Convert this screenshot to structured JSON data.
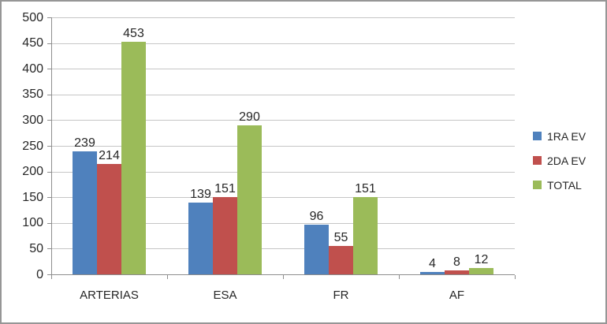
{
  "chart_data": {
    "type": "bar",
    "categories": [
      "ARTERIAS",
      "ESA",
      "FR",
      "AF"
    ],
    "series": [
      {
        "name": "1RA EV",
        "color": "#4F81BD",
        "values": [
          239,
          139,
          96,
          4
        ]
      },
      {
        "name": "2DA EV",
        "color": "#C0504D",
        "values": [
          214,
          151,
          55,
          8
        ]
      },
      {
        "name": "TOTAL",
        "color": "#9BBB59",
        "values": [
          453,
          290,
          151,
          12
        ]
      }
    ],
    "ylim": [
      0,
      500
    ],
    "ytick_step": 50,
    "ytick_labels": [
      "0",
      "50",
      "100",
      "150",
      "200",
      "250",
      "300",
      "350",
      "400",
      "450",
      "500"
    ],
    "grid": true,
    "data_labels": true,
    "legend_position": "right"
  },
  "colors": {
    "gridline": "#c6c6c6",
    "axis": "#8e8e8e",
    "text": "#262626",
    "border": "#969696",
    "background": "#ffffff"
  }
}
